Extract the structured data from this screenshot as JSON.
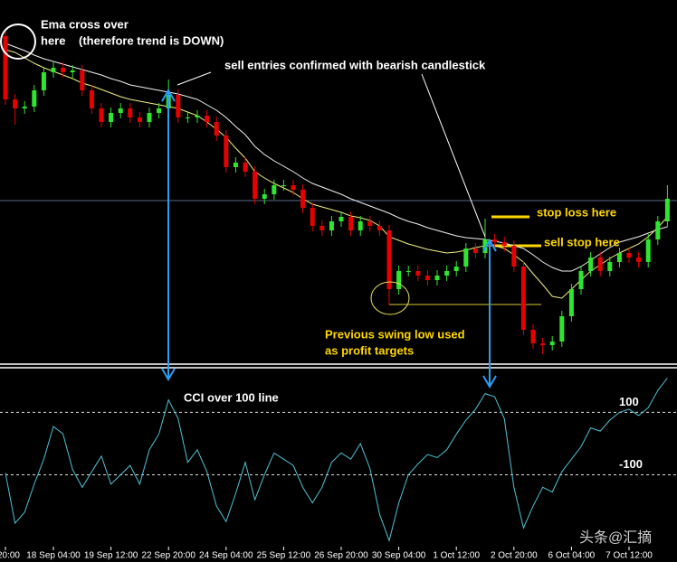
{
  "chart_data": [
    {
      "type": "candlestick",
      "ylim": [
        0,
        400
      ],
      "up_color": "#2ee62e",
      "down_color": "#e60000",
      "annotations": [
        {
          "text": "Ema cross over",
          "color": "#ffffff"
        },
        {
          "text": "here",
          "color": "#ffffff"
        },
        {
          "text": "(therefore trend is DOWN)",
          "color": "#ffffff"
        },
        {
          "text": "sell entries confirmed with bearish candlestick",
          "color": "#ffffff"
        },
        {
          "text": "stop loss here",
          "color": "#ffd700"
        },
        {
          "text": "sell stop here",
          "color": "#ffd700"
        },
        {
          "text": "Previous swing low used",
          "color": "#ffd700"
        },
        {
          "text": "as profit targets",
          "color": "#ffd700"
        }
      ],
      "levels": [
        {
          "value": 178,
          "color": "#5a6888"
        },
        {
          "value": 160,
          "color": "#ffd700"
        },
        {
          "value": 128,
          "color": "#ffd700"
        },
        {
          "value": 63,
          "color": "#d8c830"
        }
      ],
      "open": [
        360,
        290,
        280,
        282,
        300,
        320,
        325,
        320,
        322,
        300,
        280,
        265,
        275,
        280,
        270,
        265,
        275,
        280,
        295,
        270,
        270,
        272,
        265,
        250,
        215,
        220,
        210,
        180,
        185,
        195,
        195,
        190,
        170,
        150,
        145,
        155,
        160,
        145,
        155,
        150,
        145,
        80,
        100,
        100,
        95,
        90,
        95,
        100,
        105,
        125,
        120,
        135,
        132,
        128,
        105,
        35,
        20,
        18,
        22,
        50,
        80,
        100,
        115,
        100,
        110,
        120,
        115,
        110,
        135,
        155
      ],
      "high": [
        366,
        296,
        288,
        306,
        326,
        331,
        331,
        328,
        328,
        306,
        286,
        281,
        286,
        286,
        276,
        281,
        286,
        312,
        301,
        276,
        278,
        278,
        271,
        256,
        226,
        226,
        216,
        191,
        201,
        201,
        201,
        196,
        176,
        156,
        161,
        166,
        166,
        161,
        161,
        156,
        151,
        106,
        106,
        106,
        101,
        101,
        106,
        111,
        131,
        131,
        158,
        141,
        138,
        134,
        111,
        41,
        26,
        28,
        56,
        86,
        106,
        121,
        121,
        116,
        126,
        126,
        121,
        141,
        161,
        195
      ],
      "low": [
        284,
        262,
        274,
        276,
        294,
        314,
        314,
        314,
        294,
        274,
        259,
        259,
        269,
        264,
        259,
        259,
        269,
        274,
        264,
        264,
        264,
        259,
        244,
        209,
        209,
        204,
        174,
        174,
        179,
        189,
        184,
        164,
        144,
        139,
        139,
        149,
        139,
        139,
        144,
        139,
        62,
        74,
        94,
        89,
        84,
        84,
        89,
        94,
        99,
        114,
        114,
        126,
        122,
        99,
        29,
        14,
        8,
        12,
        16,
        44,
        74,
        94,
        94,
        94,
        104,
        109,
        104,
        104,
        129,
        149
      ],
      "close": [
        290,
        280,
        282,
        300,
        320,
        325,
        320,
        322,
        300,
        280,
        265,
        275,
        280,
        270,
        265,
        275,
        280,
        295,
        270,
        270,
        272,
        265,
        250,
        215,
        220,
        210,
        180,
        185,
        195,
        195,
        190,
        170,
        150,
        145,
        155,
        160,
        145,
        155,
        150,
        145,
        80,
        100,
        100,
        95,
        90,
        95,
        100,
        105,
        125,
        120,
        135,
        132,
        128,
        105,
        35,
        20,
        18,
        22,
        50,
        80,
        100,
        115,
        100,
        110,
        120,
        115,
        110,
        135,
        155,
        180
      ],
      "ema": [
        {
          "color": "#f0f0f0",
          "values": [
            352,
            348,
            344,
            339,
            335,
            332,
            329,
            326,
            323,
            320,
            317,
            313,
            310,
            306,
            304,
            302,
            300,
            298,
            296,
            293,
            290,
            284,
            278,
            270,
            260,
            251,
            238,
            229,
            222,
            216,
            210,
            203,
            197,
            193,
            189,
            185,
            180,
            176,
            172,
            168,
            164,
            159,
            155,
            152,
            148,
            145,
            142,
            139,
            137,
            136,
            135,
            133,
            131,
            128,
            125,
            118,
            110,
            104,
            100,
            100,
            105,
            112,
            119,
            126,
            132,
            135,
            138,
            142,
            146,
            149
          ]
        },
        {
          "color": "#f0f080",
          "values": [
            345,
            342,
            336,
            330,
            325,
            321,
            317,
            313,
            308,
            305,
            301,
            297,
            293,
            290,
            288,
            286,
            284,
            282,
            280,
            276,
            272,
            265,
            257,
            248,
            236,
            225,
            210,
            203,
            197,
            192,
            187,
            180,
            174,
            171,
            168,
            165,
            161,
            159,
            156,
            150,
            138,
            134,
            130,
            127,
            124,
            122,
            120,
            121,
            123,
            126,
            128,
            128,
            125,
            118,
            110,
            97,
            85,
            72,
            70,
            80,
            90,
            100,
            107,
            114,
            120,
            125,
            130,
            138,
            148,
            160
          ]
        }
      ]
    },
    {
      "type": "line",
      "color": "#4fc3d8",
      "ylim": [
        -330,
        240
      ],
      "yticks": [
        100,
        -100
      ],
      "grid": true,
      "annotations": [
        {
          "text": "CCI over 100 line",
          "color": "#ffffff"
        }
      ],
      "categories": [
        "20:00",
        null,
        null,
        null,
        null,
        "18 Sep 04:00",
        null,
        null,
        null,
        null,
        null,
        "19 Sep 12:00",
        null,
        null,
        null,
        null,
        null,
        "22 Sep 20:00",
        null,
        null,
        null,
        null,
        null,
        "24 Sep 04:00",
        null,
        null,
        null,
        null,
        null,
        "25 Sep 12:00",
        null,
        null,
        null,
        null,
        null,
        "26 Sep 20:00",
        null,
        null,
        null,
        null,
        null,
        "30 Sep 04:00",
        null,
        null,
        null,
        null,
        null,
        "1 Oct 12:00",
        null,
        null,
        null,
        null,
        null,
        "2 Oct 20:00",
        null,
        null,
        null,
        null,
        null,
        "6 Oct 04:00",
        null,
        null,
        null,
        null,
        null,
        "7 Oct 12:00",
        null,
        null,
        null,
        null
      ],
      "values": [
        -94,
        -255,
        -220,
        -130,
        -50,
        55,
        31,
        -83,
        -140,
        -90,
        -40,
        -130,
        -100,
        -70,
        -130,
        -20,
        31,
        140,
        80,
        -60,
        -20,
        -90,
        -200,
        -250,
        -160,
        -60,
        -180,
        -100,
        -30,
        -50,
        -70,
        -140,
        -190,
        -140,
        -60,
        -30,
        -50,
        0,
        -80,
        -226,
        -311,
        -190,
        -100,
        -65,
        -35,
        -45,
        -20,
        30,
        75,
        110,
        160,
        150,
        80,
        -140,
        -270,
        -200,
        -140,
        -155,
        -90,
        -50,
        -10,
        50,
        40,
        75,
        100,
        110,
        90,
        115,
        170,
        210
      ]
    }
  ],
  "watermark": "头条@汇摘"
}
